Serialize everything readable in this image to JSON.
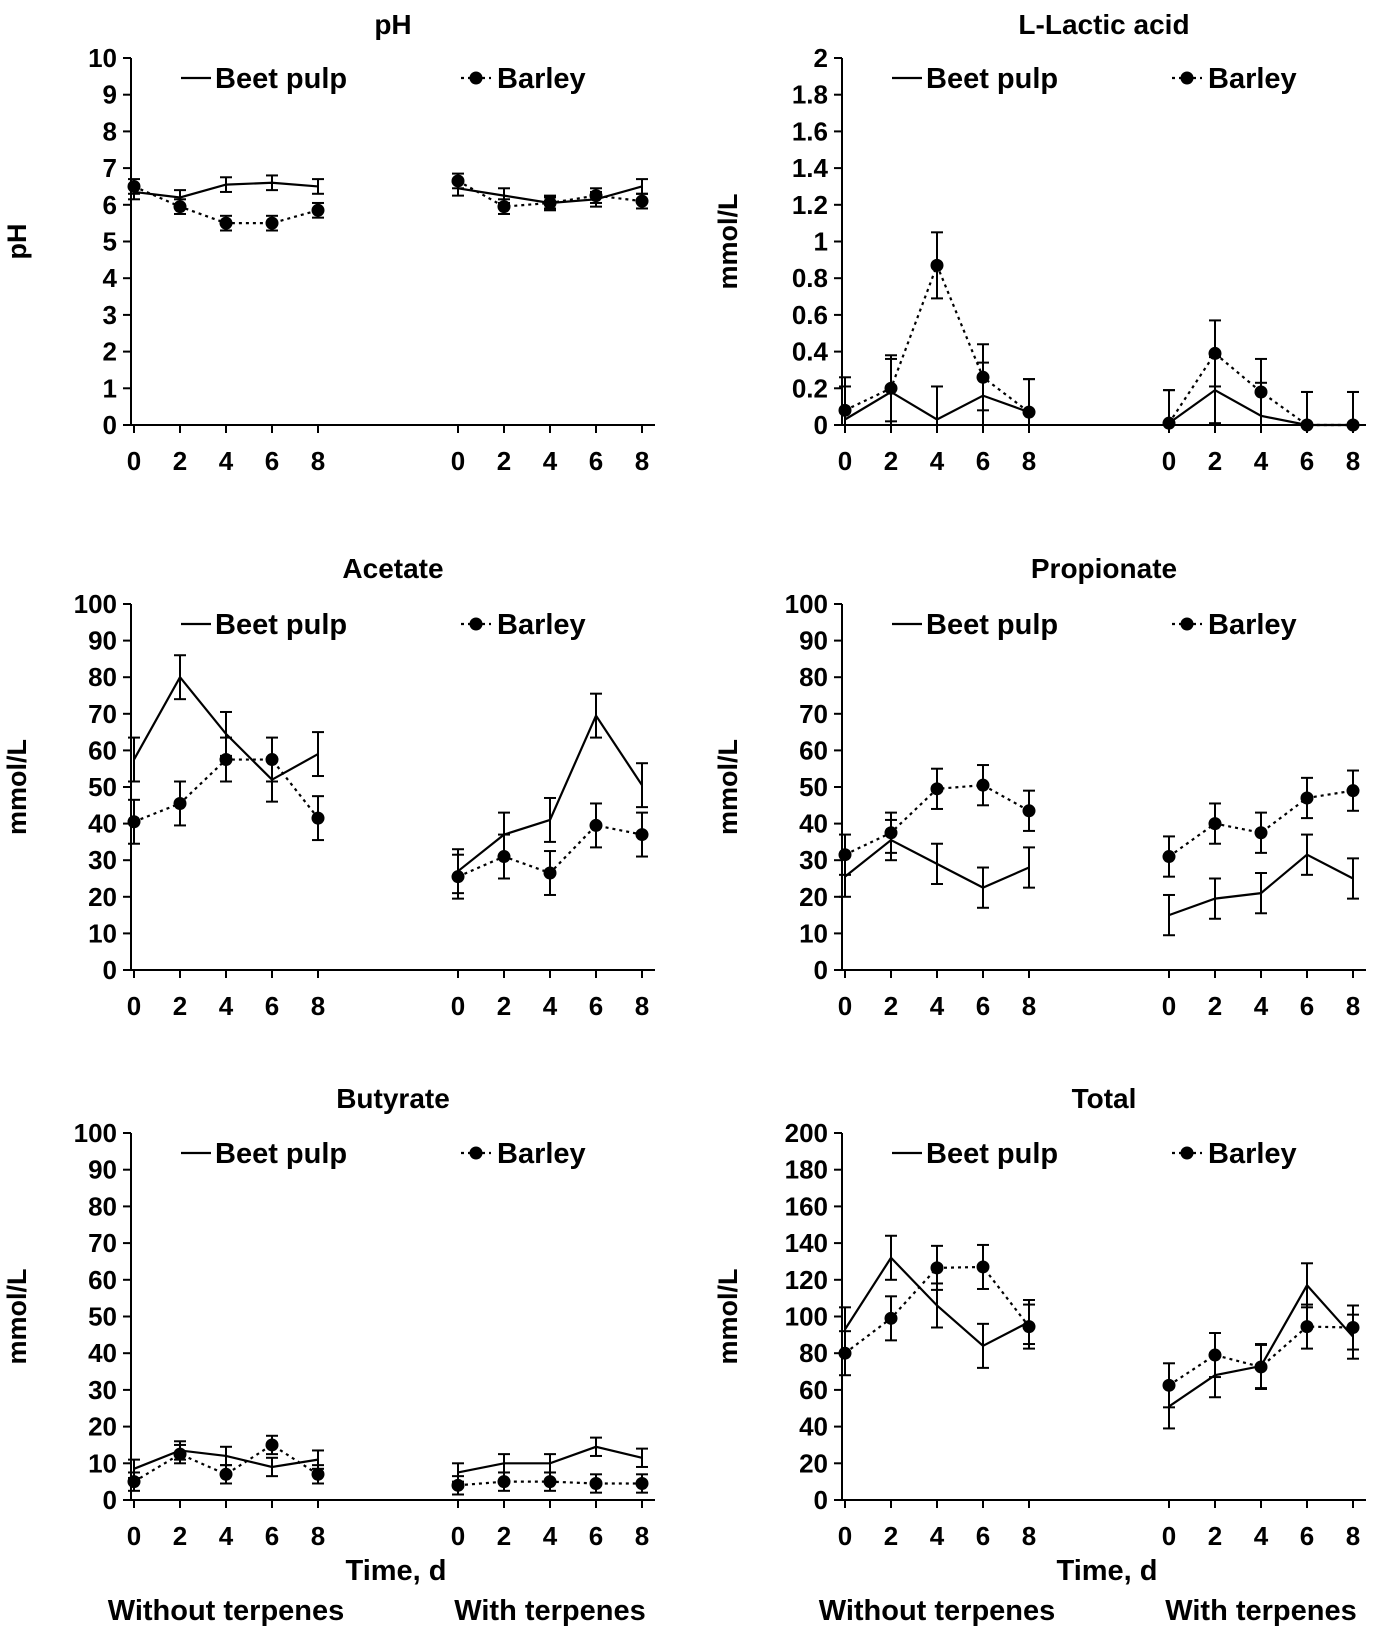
{
  "figure": {
    "x_axis_title": "Time, d",
    "conditions": [
      "Without terpenes",
      "With terpenes"
    ]
  },
  "chart_data": [
    {
      "type": "line",
      "title": "pH",
      "ylabel": "pH",
      "xlabel": "",
      "ylim": [
        0,
        10
      ],
      "yticks": [
        "0",
        "1",
        "2",
        "3",
        "4",
        "5",
        "6",
        "7",
        "8",
        "9",
        "10"
      ],
      "x": [
        0,
        2,
        4,
        6,
        8
      ],
      "groups": [
        "Without terpenes",
        "With terpenes"
      ],
      "series": [
        {
          "name": "Beet pulp",
          "style": "solid",
          "values": [
            [
              6.35,
              6.2,
              6.55,
              6.6,
              6.5
            ],
            [
              6.45,
              6.25,
              6.05,
              6.15,
              6.5
            ]
          ],
          "errors": [
            [
              0.2,
              0.2,
              0.2,
              0.2,
              0.2
            ],
            [
              0.2,
              0.2,
              0.15,
              0.2,
              0.2
            ]
          ]
        },
        {
          "name": "Barley",
          "style": "dotted",
          "values": [
            [
              6.5,
              5.95,
              5.5,
              5.5,
              5.85
            ],
            [
              6.65,
              5.95,
              6.05,
              6.25,
              6.1
            ]
          ],
          "errors": [
            [
              0.2,
              0.2,
              0.2,
              0.2,
              0.2
            ],
            [
              0.2,
              0.2,
              0.2,
              0.2,
              0.2
            ]
          ]
        }
      ]
    },
    {
      "type": "line",
      "title": "L-Lactic acid",
      "ylabel": "mmol/L",
      "xlabel": "",
      "ylim": [
        0,
        2
      ],
      "yticks": [
        "0",
        "0.2",
        "0.4",
        "0.6",
        "0.8",
        "1",
        "1.2",
        "1.4",
        "1.6",
        "1.8",
        "2"
      ],
      "x": [
        0,
        2,
        4,
        6,
        8
      ],
      "groups": [
        "Without terpenes",
        "With terpenes"
      ],
      "series": [
        {
          "name": "Beet pulp",
          "style": "solid",
          "values": [
            [
              0.03,
              0.18,
              0.03,
              0.16,
              0.07
            ],
            [
              0.01,
              0.19,
              0.05,
              0.0,
              0.0
            ]
          ],
          "errors": [
            [
              0.18,
              0.18,
              0.18,
              0.18,
              0.18
            ],
            [
              0.18,
              0.18,
              0.18,
              0.18,
              0.18
            ]
          ]
        },
        {
          "name": "Barley",
          "style": "dotted",
          "values": [
            [
              0.08,
              0.2,
              0.87,
              0.26,
              0.07
            ],
            [
              0.01,
              0.39,
              0.18,
              0.0,
              0.0
            ]
          ],
          "errors": [
            [
              0.18,
              0.18,
              0.18,
              0.18,
              0.18
            ],
            [
              0.18,
              0.18,
              0.18,
              0.18,
              0.18
            ]
          ]
        }
      ]
    },
    {
      "type": "line",
      "title": "Acetate",
      "ylabel": "mmol/L",
      "xlabel": "",
      "ylim": [
        0,
        100
      ],
      "yticks": [
        "0",
        "10",
        "20",
        "30",
        "40",
        "50",
        "60",
        "70",
        "80",
        "90",
        "100"
      ],
      "x": [
        0,
        2,
        4,
        6,
        8
      ],
      "groups": [
        "Without terpenes",
        "With terpenes"
      ],
      "series": [
        {
          "name": "Beet pulp",
          "style": "solid",
          "values": [
            [
              57.5,
              80,
              64.5,
              52,
              59
            ],
            [
              27,
              37,
              41,
              69.5,
              50.5
            ]
          ],
          "errors": [
            [
              6,
              6,
              6,
              6,
              6
            ],
            [
              6,
              6,
              6,
              6,
              6
            ]
          ]
        },
        {
          "name": "Barley",
          "style": "dotted",
          "values": [
            [
              40.5,
              45.5,
              57.5,
              57.5,
              41.5
            ],
            [
              25.5,
              31,
              26.5,
              39.5,
              37
            ]
          ],
          "errors": [
            [
              6,
              6,
              6,
              6,
              6
            ],
            [
              6,
              6,
              6,
              6,
              6
            ]
          ]
        }
      ]
    },
    {
      "type": "line",
      "title": "Propionate",
      "ylabel": "mmol/L",
      "xlabel": "",
      "ylim": [
        0,
        100
      ],
      "yticks": [
        "0",
        "10",
        "20",
        "30",
        "40",
        "50",
        "60",
        "70",
        "80",
        "90",
        "100"
      ],
      "x": [
        0,
        2,
        4,
        6,
        8
      ],
      "groups": [
        "Without terpenes",
        "With terpenes"
      ],
      "series": [
        {
          "name": "Beet pulp",
          "style": "solid",
          "values": [
            [
              25.5,
              35.5,
              29,
              22.5,
              28
            ],
            [
              15,
              19.5,
              21,
              31.5,
              25
            ]
          ],
          "errors": [
            [
              5.5,
              5.5,
              5.5,
              5.5,
              5.5
            ],
            [
              5.5,
              5.5,
              5.5,
              5.5,
              5.5
            ]
          ]
        },
        {
          "name": "Barley",
          "style": "dotted",
          "values": [
            [
              31.5,
              37.5,
              49.5,
              50.5,
              43.5
            ],
            [
              31,
              40,
              37.5,
              47,
              49
            ]
          ],
          "errors": [
            [
              5.5,
              5.5,
              5.5,
              5.5,
              5.5
            ],
            [
              5.5,
              5.5,
              5.5,
              5.5,
              5.5
            ]
          ]
        }
      ]
    },
    {
      "type": "line",
      "title": "Butyrate",
      "ylabel": "mmol/L",
      "xlabel": "Time, d",
      "ylim": [
        0,
        100
      ],
      "yticks": [
        "0",
        "10",
        "20",
        "30",
        "40",
        "50",
        "60",
        "70",
        "80",
        "90",
        "100"
      ],
      "x": [
        0,
        2,
        4,
        6,
        8
      ],
      "groups": [
        "Without terpenes",
        "With terpenes"
      ],
      "series": [
        {
          "name": "Beet pulp",
          "style": "solid",
          "values": [
            [
              8.5,
              13.5,
              12,
              9,
              11
            ],
            [
              7.5,
              10,
              10,
              14.5,
              11.5
            ]
          ],
          "errors": [
            [
              2.5,
              2.5,
              2.5,
              2.5,
              2.5
            ],
            [
              2.5,
              2.5,
              2.5,
              2.5,
              2.5
            ]
          ]
        },
        {
          "name": "Barley",
          "style": "dotted",
          "values": [
            [
              5,
              12.5,
              7,
              15,
              7
            ],
            [
              4,
              5,
              5,
              4.5,
              4.5
            ]
          ],
          "errors": [
            [
              2.5,
              2.5,
              2.5,
              2.5,
              2.5
            ],
            [
              2.5,
              2.5,
              2.5,
              2.5,
              2.5
            ]
          ]
        }
      ]
    },
    {
      "type": "line",
      "title": "Total",
      "ylabel": "mmol/L",
      "xlabel": "Time, d",
      "ylim": [
        0,
        200
      ],
      "yticks": [
        "0",
        "20",
        "40",
        "60",
        "80",
        "100",
        "120",
        "140",
        "160",
        "180",
        "200"
      ],
      "x": [
        0,
        2,
        4,
        6,
        8
      ],
      "groups": [
        "Without terpenes",
        "With terpenes"
      ],
      "series": [
        {
          "name": "Beet pulp",
          "style": "solid",
          "values": [
            [
              93,
              132,
              106,
              84,
              97
            ],
            [
              51,
              68,
              73,
              117,
              89
            ]
          ],
          "errors": [
            [
              12,
              12,
              12,
              12,
              12
            ],
            [
              12,
              12,
              12,
              12,
              12
            ]
          ]
        },
        {
          "name": "Barley",
          "style": "dotted",
          "values": [
            [
              80,
              99,
              126.5,
              127,
              94.5
            ],
            [
              62.5,
              79,
              72.5,
              94.5,
              94
            ]
          ],
          "errors": [
            [
              12,
              12,
              12,
              12,
              12
            ],
            [
              12,
              12,
              12,
              12,
              12
            ]
          ]
        }
      ]
    }
  ]
}
